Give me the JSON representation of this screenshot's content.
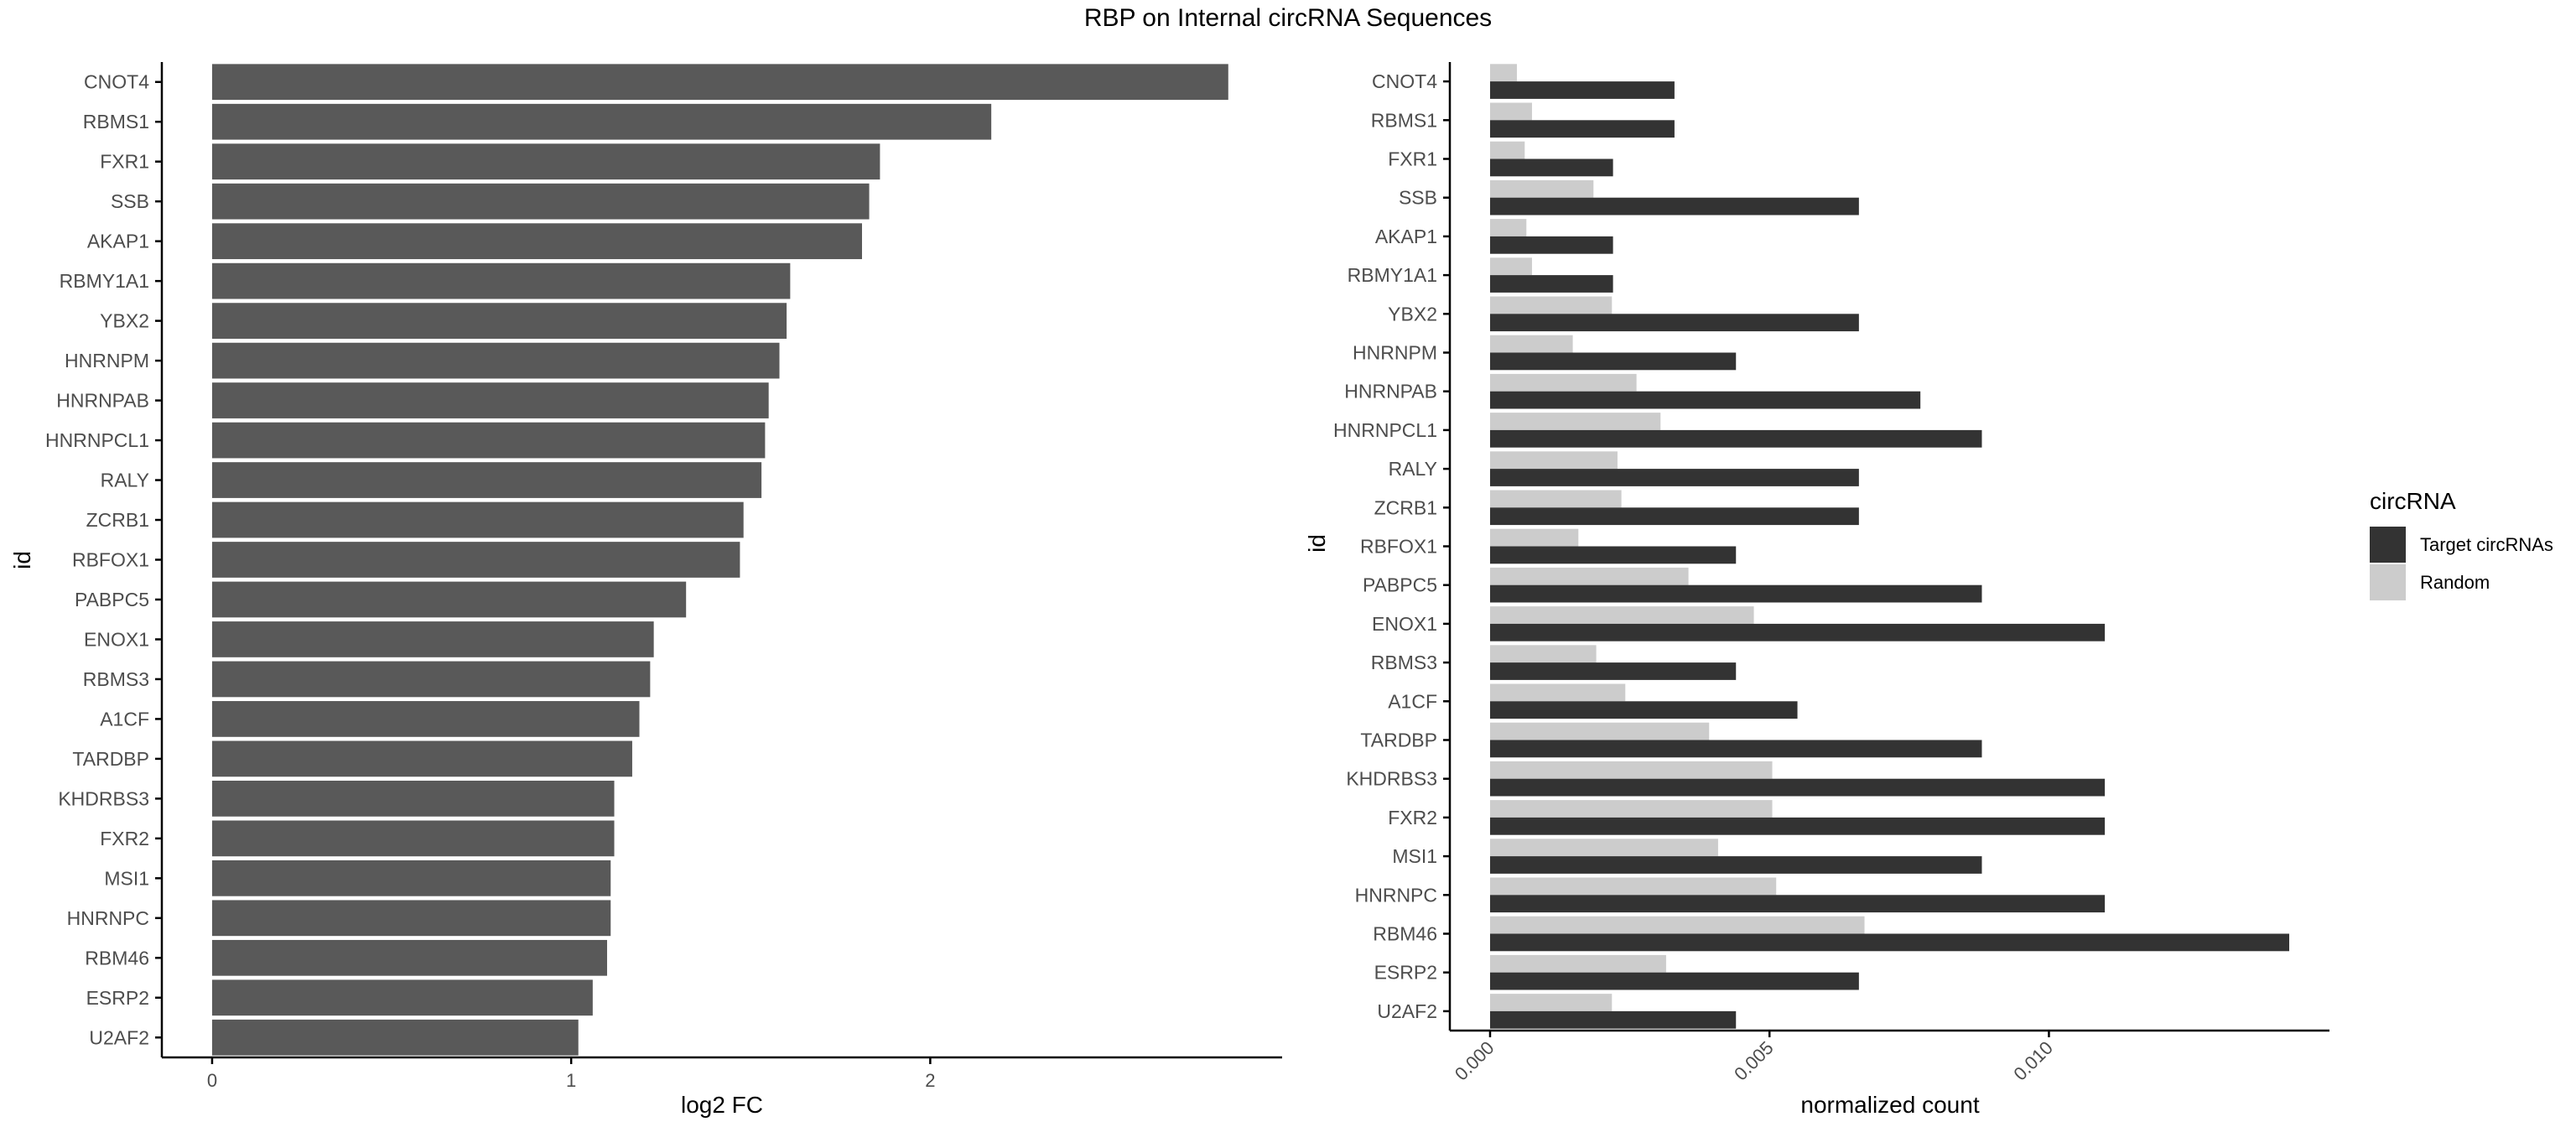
{
  "title": "RBP on Internal circRNA Sequences",
  "colors": {
    "left_bar": "#595959",
    "target": "#333333",
    "random": "#cccccc",
    "axis": "#000000",
    "tick_text": "#4d4d4d"
  },
  "chart_data": [
    {
      "type": "bar",
      "orientation": "horizontal",
      "categories": [
        "CNOT4",
        "RBMS1",
        "FXR1",
        "SSB",
        "AKAP1",
        "RBMY1A1",
        "YBX2",
        "HNRNPM",
        "HNRNPAB",
        "HNRNPCL1",
        "RALY",
        "ZCRB1",
        "RBFOX1",
        "PABPC5",
        "ENOX1",
        "RBMS3",
        "A1CF",
        "TARDBP",
        "KHDRBS3",
        "FXR2",
        "MSI1",
        "HNRNPC",
        "RBM46",
        "ESRP2",
        "U2AF2"
      ],
      "values": [
        2.83,
        2.17,
        1.86,
        1.83,
        1.81,
        1.61,
        1.6,
        1.58,
        1.55,
        1.54,
        1.53,
        1.48,
        1.47,
        1.32,
        1.23,
        1.22,
        1.19,
        1.17,
        1.12,
        1.12,
        1.11,
        1.11,
        1.1,
        1.06,
        1.02
      ],
      "xlabel": "log2 FC",
      "ylabel": "id",
      "xlim": [
        -0.14,
        2.98
      ],
      "xticks": [
        "0",
        "1",
        "2"
      ],
      "grid": false
    },
    {
      "type": "bar",
      "orientation": "horizontal",
      "categories": [
        "CNOT4",
        "RBMS1",
        "FXR1",
        "SSB",
        "AKAP1",
        "RBMY1A1",
        "YBX2",
        "HNRNPM",
        "HNRNPAB",
        "HNRNPCL1",
        "RALY",
        "ZCRB1",
        "RBFOX1",
        "PABPC5",
        "ENOX1",
        "RBMS3",
        "A1CF",
        "TARDBP",
        "KHDRBS3",
        "FXR2",
        "MSI1",
        "HNRNPC",
        "RBM46",
        "ESRP2",
        "U2AF2"
      ],
      "series": [
        {
          "name": "Target circRNAs",
          "values": [
            0.0033,
            0.0033,
            0.0022,
            0.0066,
            0.0022,
            0.0022,
            0.0066,
            0.0044,
            0.0077,
            0.0088,
            0.0066,
            0.0066,
            0.0044,
            0.0088,
            0.011,
            0.0044,
            0.0055,
            0.0088,
            0.011,
            0.011,
            0.0088,
            0.011,
            0.0143,
            0.0066,
            0.0044
          ]
        },
        {
          "name": "Random",
          "values": [
            0.00048,
            0.00075,
            0.00062,
            0.00185,
            0.00065,
            0.00075,
            0.00218,
            0.00148,
            0.00262,
            0.00305,
            0.00228,
            0.00235,
            0.00158,
            0.00355,
            0.00472,
            0.0019,
            0.00242,
            0.00392,
            0.00505,
            0.00505,
            0.00408,
            0.00512,
            0.0067,
            0.00315,
            0.00218
          ]
        }
      ],
      "xlabel": "normalized count",
      "ylabel": "id",
      "xlim": [
        -0.00072,
        0.01502
      ],
      "xticks": [
        "0.000",
        "0.005",
        "0.010"
      ],
      "legend": {
        "title": "circRNA",
        "position": "right"
      },
      "grid": false
    }
  ]
}
